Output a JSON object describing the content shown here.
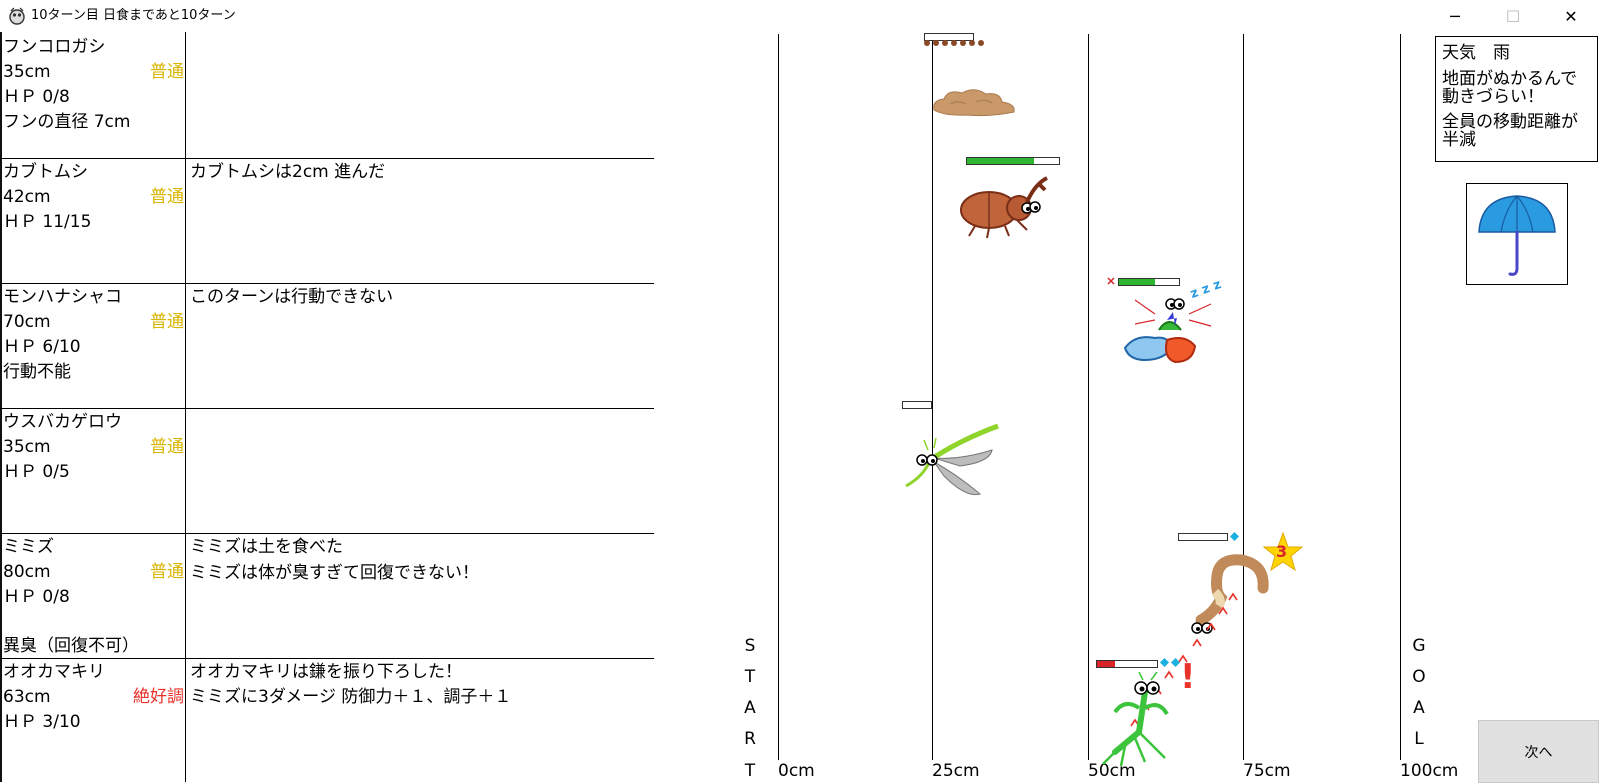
{
  "window": {
    "title": "10ターン目 日食まであと10ターン",
    "min_glyph": "─",
    "max_glyph": "☐",
    "close_glyph": "✕"
  },
  "panels": [
    {
      "name": "フンコロガシ",
      "dist": "35cm",
      "hp": "ＨＰ 0/8",
      "extra1": "フンの直径 7cm",
      "extra2": "",
      "condition": "普通",
      "condition_type": "normal",
      "messages": []
    },
    {
      "name": "カブトムシ",
      "dist": "42cm",
      "hp": "ＨＰ 11/15",
      "extra1": "",
      "extra2": "",
      "condition": "普通",
      "condition_type": "normal",
      "messages": [
        "カブトムシは2cm 進んだ"
      ]
    },
    {
      "name": "モンハナシャコ",
      "dist": "70cm",
      "hp": "ＨＰ 6/10",
      "extra1": "行動不能",
      "extra2": "",
      "condition": "普通",
      "condition_type": "normal",
      "messages": [
        "このターンは行動できない"
      ]
    },
    {
      "name": "ウスバカゲロウ",
      "dist": "35cm",
      "hp": "ＨＰ 0/5",
      "extra1": "",
      "extra2": "",
      "condition": "普通",
      "condition_type": "normal",
      "messages": []
    },
    {
      "name": "ミミズ",
      "dist": "80cm",
      "hp": "ＨＰ 0/8",
      "extra1": "",
      "extra2": "異臭（回復不可）",
      "condition": "普通",
      "condition_type": "normal",
      "messages": [
        "ミミズは土を食べた",
        "ミミズは体が臭すぎて回復できない！"
      ]
    },
    {
      "name": "オオカマキリ",
      "dist": "63cm",
      "hp": "ＨＰ 3/10",
      "extra1": "",
      "extra2": "",
      "condition": "絶好調",
      "condition_type": "great",
      "messages": [
        "オオカマキリは鎌を振り下ろした！",
        "ミミズに3ダメージ  防御力＋１、調子＋１"
      ]
    }
  ],
  "track": {
    "ticks": [
      "0cm",
      "25cm",
      "50cm",
      "75cm",
      "100cm"
    ],
    "start_letters": [
      "S",
      "T",
      "A",
      "R",
      "T"
    ],
    "goal_letters": [
      "G",
      "O",
      "A",
      "L"
    ]
  },
  "hp_fraction": {
    "kabutomushi": 0.73,
    "shako": 0.6,
    "kamakiri": 0.3
  },
  "weather": {
    "line1": "天気　雨",
    "line2": "地面がぬかるんで",
    "line3": "動きづらい！",
    "line4": "全員の移動距離が",
    "line5": "半減"
  },
  "damage_popup": "3",
  "alert_mark": "!",
  "sleep_mark": "z z z",
  "next_button_label": "次へ",
  "colors": {
    "hp_green": "#2fb52f",
    "hp_red": "#d8242a",
    "normal": "#d9b400",
    "great": "#e8322a",
    "umbrella": "#2a9be0"
  }
}
